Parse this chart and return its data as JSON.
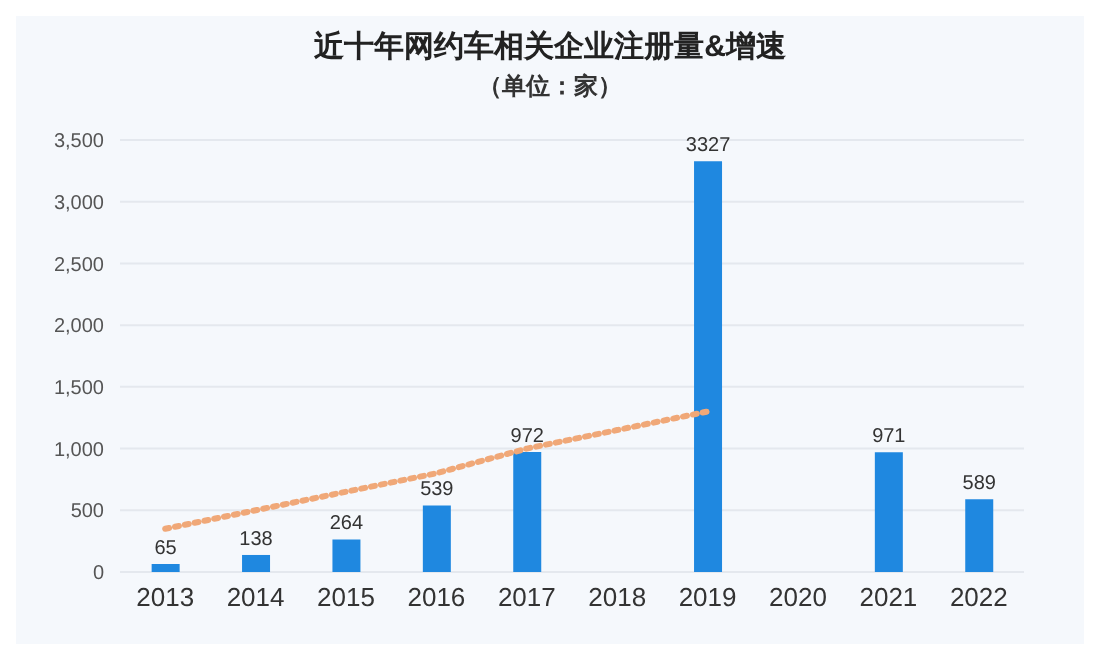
{
  "chart_data": {
    "type": "bar",
    "title": "近十年网约车相关企业注册量&增速",
    "subtitle": "（单位：家）",
    "categories": [
      "2013",
      "2014",
      "2015",
      "2016",
      "2017",
      "2018",
      "2019",
      "2020",
      "2021",
      "2022"
    ],
    "series": [
      {
        "color": "#1f88e0",
        "values": [
          65,
          138,
          264,
          539,
          972,
          null,
          3327,
          null,
          971,
          589
        ],
        "value_labels": [
          "65",
          "138",
          "264",
          "539",
          "972",
          null,
          "3327",
          null,
          "971",
          "589"
        ]
      },
      {
        "type": "line",
        "color": "#f0a878",
        "line_style": "dotted",
        "values": [
          350,
          500,
          650,
          800,
          1000,
          1150,
          1300,
          null,
          null,
          null
        ]
      }
    ],
    "ylim": [
      0,
      3500
    ],
    "yticks": [
      0,
      {
        "value": 500,
        "label": "500"
      },
      {
        "value": 1000,
        "label": "1,000"
      },
      {
        "value": 1500,
        "label": "1,500"
      },
      {
        "value": 2000,
        "label": "2,000"
      },
      {
        "value": 2500,
        "label": "2,500"
      },
      {
        "value": 3000,
        "label": "3,000"
      },
      {
        "value": 3500,
        "label": "3,500"
      }
    ],
    "grid": "y",
    "legend": false
  }
}
